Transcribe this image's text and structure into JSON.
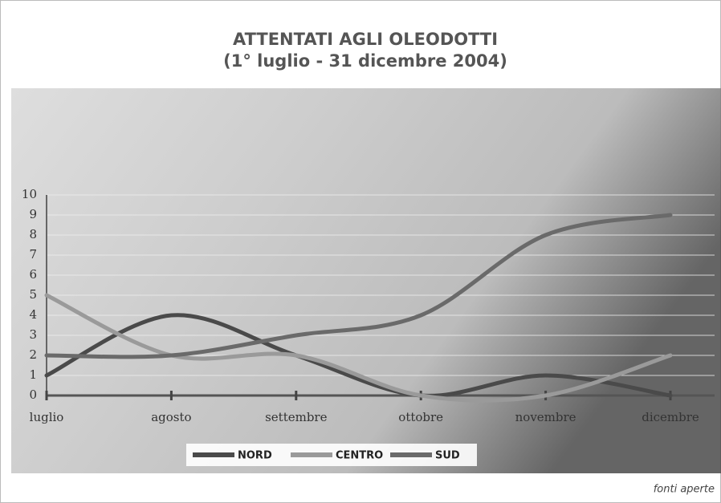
{
  "chart_data": {
    "type": "line",
    "title": "ATTENTATI AGLI OLEODOTTI",
    "subtitle": "(1° luglio - 31 dicembre 2004)",
    "categories": [
      "luglio",
      "agosto",
      "settembre",
      "ottobre",
      "novembre",
      "dicembre"
    ],
    "series": [
      {
        "name": "NORD",
        "color": "#4a4a4a",
        "values": [
          1,
          4,
          2,
          0,
          1,
          0
        ]
      },
      {
        "name": "CENTRO",
        "color": "#9a9a9a",
        "values": [
          5,
          2,
          2,
          0,
          0,
          2
        ]
      },
      {
        "name": "SUD",
        "color": "#6a6a6a",
        "values": [
          2,
          2,
          3,
          4,
          8,
          9
        ]
      }
    ],
    "ylim": [
      0,
      10
    ],
    "yticks": [
      0,
      1,
      2,
      3,
      4,
      5,
      6,
      7,
      8,
      9,
      10
    ],
    "grid": true,
    "legend": "bottom",
    "source": "fonti aperte"
  }
}
